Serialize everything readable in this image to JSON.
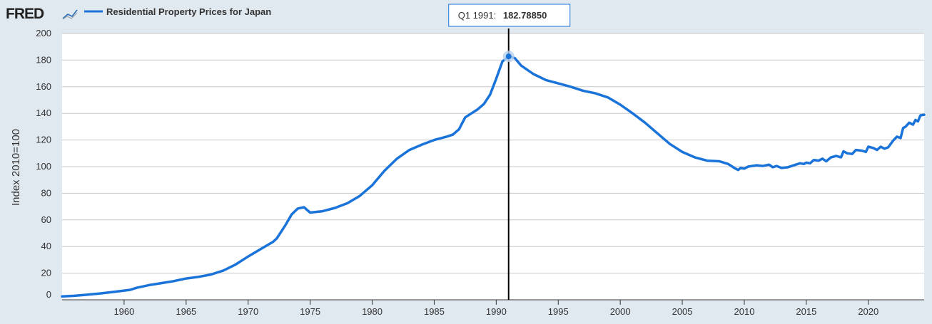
{
  "header": {
    "logo_text": "FRED",
    "legend_label": "Residential Property Prices for Japan"
  },
  "tooltip": {
    "period": "Q1 1991:",
    "value": "182.78850",
    "x": 1991.0,
    "y": 182.7885
  },
  "colors": {
    "series": "#1a73d9",
    "background": "#e1e9f0",
    "plot_background": "#ffffff",
    "grid": "#c8c8c8",
    "crosshair": "#000000",
    "highlight": "#b8d2ee"
  },
  "chart_data": {
    "type": "line",
    "title": "",
    "xlabel": "",
    "ylabel": "Index 2010=100",
    "xlim": [
      1955.0,
      2024.5
    ],
    "ylim": [
      0,
      200
    ],
    "x_ticks": [
      1960,
      1965,
      1970,
      1975,
      1980,
      1985,
      1990,
      1995,
      2000,
      2005,
      2010,
      2015,
      2020
    ],
    "y_ticks": [
      0,
      20,
      40,
      60,
      80,
      100,
      120,
      140,
      160,
      180,
      200
    ],
    "grid": true,
    "legend_position": "top-left",
    "series": [
      {
        "name": "Residential Property Prices for Japan",
        "points": [
          [
            1955.0,
            2.5
          ],
          [
            1956.0,
            3.0
          ],
          [
            1957.0,
            3.8
          ],
          [
            1958.0,
            4.7
          ],
          [
            1959.0,
            5.7
          ],
          [
            1960.0,
            6.9
          ],
          [
            1960.5,
            7.5
          ],
          [
            1961.0,
            9.0
          ],
          [
            1962.0,
            11.0
          ],
          [
            1963.0,
            12.5
          ],
          [
            1964.0,
            14.0
          ],
          [
            1965.0,
            16.0
          ],
          [
            1966.0,
            17.2
          ],
          [
            1967.0,
            19.0
          ],
          [
            1968.0,
            22.0
          ],
          [
            1969.0,
            26.5
          ],
          [
            1970.0,
            32.5
          ],
          [
            1971.0,
            38.0
          ],
          [
            1972.0,
            43.5
          ],
          [
            1972.3,
            46.0
          ],
          [
            1973.0,
            56.0
          ],
          [
            1973.5,
            64.0
          ],
          [
            1974.0,
            68.5
          ],
          [
            1974.5,
            69.5
          ],
          [
            1975.0,
            65.5
          ],
          [
            1976.0,
            66.5
          ],
          [
            1977.0,
            69.0
          ],
          [
            1978.0,
            72.5
          ],
          [
            1979.0,
            78.0
          ],
          [
            1980.0,
            86.0
          ],
          [
            1981.0,
            97.0
          ],
          [
            1982.0,
            106.0
          ],
          [
            1983.0,
            112.5
          ],
          [
            1984.0,
            116.5
          ],
          [
            1985.0,
            120.0
          ],
          [
            1986.0,
            122.5
          ],
          [
            1986.5,
            124.0
          ],
          [
            1987.0,
            128.0
          ],
          [
            1987.5,
            137.0
          ],
          [
            1988.0,
            140.0
          ],
          [
            1988.5,
            143.0
          ],
          [
            1989.0,
            147.0
          ],
          [
            1989.5,
            154.0
          ],
          [
            1990.0,
            166.0
          ],
          [
            1990.5,
            179.0
          ],
          [
            1991.0,
            182.8
          ],
          [
            1991.5,
            181.5
          ],
          [
            1992.0,
            176.0
          ],
          [
            1993.0,
            169.5
          ],
          [
            1994.0,
            165.0
          ],
          [
            1995.0,
            162.5
          ],
          [
            1996.0,
            160.0
          ],
          [
            1997.0,
            157.0
          ],
          [
            1998.0,
            155.0
          ],
          [
            1999.0,
            152.0
          ],
          [
            2000.0,
            146.5
          ],
          [
            2001.0,
            140.0
          ],
          [
            2002.0,
            133.0
          ],
          [
            2003.0,
            125.0
          ],
          [
            2004.0,
            117.0
          ],
          [
            2005.0,
            111.0
          ],
          [
            2006.0,
            107.0
          ],
          [
            2007.0,
            104.5
          ],
          [
            2008.0,
            104.0
          ],
          [
            2008.7,
            102.0
          ],
          [
            2009.2,
            99.0
          ],
          [
            2009.5,
            97.5
          ],
          [
            2009.7,
            99.0
          ],
          [
            2010.0,
            98.5
          ],
          [
            2010.3,
            100.0
          ],
          [
            2011.0,
            101.0
          ],
          [
            2011.5,
            100.5
          ],
          [
            2012.0,
            101.5
          ],
          [
            2012.3,
            99.5
          ],
          [
            2012.6,
            100.5
          ],
          [
            2013.0,
            99.0
          ],
          [
            2013.5,
            99.5
          ],
          [
            2014.0,
            101.0
          ],
          [
            2014.5,
            102.5
          ],
          [
            2014.8,
            102.0
          ],
          [
            2015.0,
            103.0
          ],
          [
            2015.3,
            102.5
          ],
          [
            2015.6,
            105.0
          ],
          [
            2016.0,
            104.5
          ],
          [
            2016.3,
            106.0
          ],
          [
            2016.6,
            104.0
          ],
          [
            2017.0,
            107.0
          ],
          [
            2017.4,
            108.0
          ],
          [
            2017.8,
            107.0
          ],
          [
            2018.0,
            111.5
          ],
          [
            2018.3,
            110.0
          ],
          [
            2018.7,
            109.5
          ],
          [
            2019.0,
            112.5
          ],
          [
            2019.5,
            112.0
          ],
          [
            2019.8,
            111.0
          ],
          [
            2020.0,
            115.0
          ],
          [
            2020.4,
            114.0
          ],
          [
            2020.7,
            112.5
          ],
          [
            2021.0,
            115.0
          ],
          [
            2021.3,
            113.5
          ],
          [
            2021.6,
            114.5
          ],
          [
            2022.0,
            119.5
          ],
          [
            2022.3,
            122.5
          ],
          [
            2022.6,
            121.5
          ],
          [
            2022.8,
            129.0
          ],
          [
            2023.0,
            130.0
          ],
          [
            2023.3,
            133.0
          ],
          [
            2023.6,
            131.5
          ],
          [
            2023.8,
            135.0
          ],
          [
            2024.0,
            134.0
          ],
          [
            2024.2,
            138.5
          ],
          [
            2024.5,
            139.0
          ]
        ]
      }
    ]
  }
}
